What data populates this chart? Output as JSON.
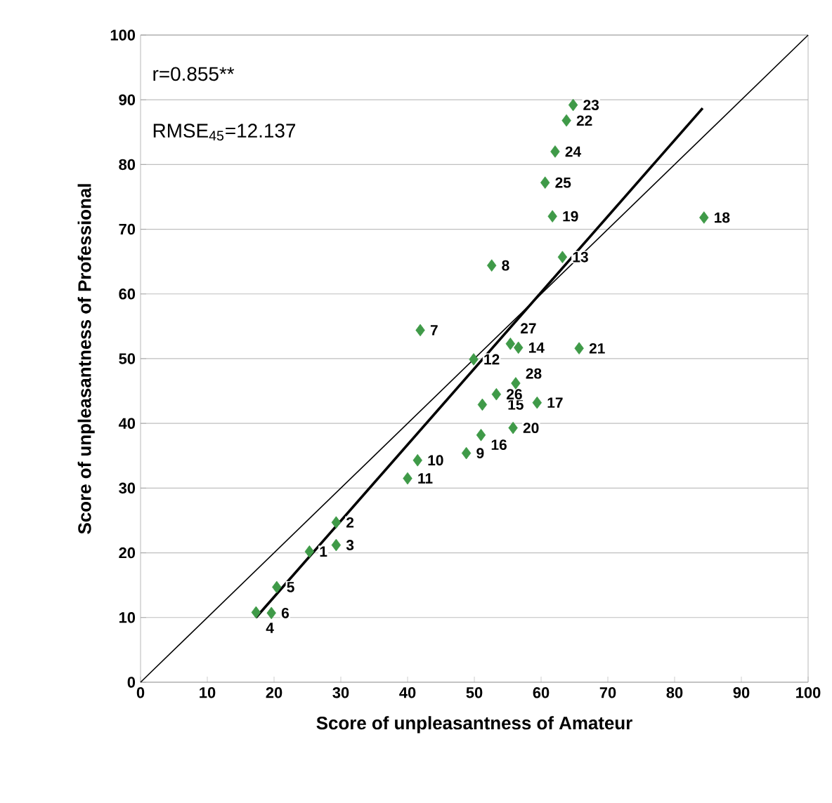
{
  "chart_data": {
    "type": "scatter",
    "xlabel": "Score of unpleasantness of Amateur",
    "ylabel": "Score of unpleasantness of Professional",
    "xlim": [
      0,
      100
    ],
    "ylim": [
      0,
      100
    ],
    "xticks": [
      0,
      10,
      20,
      30,
      40,
      50,
      60,
      70,
      80,
      90,
      100
    ],
    "yticks": [
      0,
      10,
      20,
      30,
      40,
      50,
      60,
      70,
      80,
      90,
      100
    ],
    "grid": "y",
    "marker": "diamond",
    "series": [
      {
        "color": "#3f9a48",
        "x": [
          25.3,
          29.3,
          29.3,
          17.3,
          20.4,
          19.6,
          41.9,
          52.6,
          48.8,
          41.5,
          40.0,
          49.9,
          63.2,
          56.6,
          51.2,
          51.0,
          59.4,
          84.4,
          61.7,
          55.8,
          65.7,
          63.8,
          64.8,
          62.1,
          60.6,
          53.3,
          55.4,
          56.2
        ],
        "values": [
          20.2,
          24.7,
          21.2,
          10.8,
          14.7,
          10.7,
          54.4,
          64.4,
          35.4,
          34.3,
          31.5,
          49.9,
          65.7,
          51.7,
          42.9,
          38.2,
          43.2,
          71.8,
          72.0,
          39.3,
          51.6,
          86.8,
          89.2,
          82.0,
          77.2,
          44.5,
          52.3,
          46.2
        ]
      },
      {
        "type": "line",
        "marker": "none",
        "color": "#000000",
        "x": [
          0,
          100
        ],
        "values": [
          0,
          100
        ]
      },
      {
        "type": "line",
        "marker": "none",
        "color": "#000000",
        "x": [
          17.3,
          84.2
        ],
        "values": [
          10,
          88.7
        ]
      }
    ],
    "annotations": [
      "r=0.855**",
      "RMSE$_{45}$=12.137",
      {
        "text": "1",
        "x": 25.3,
        "y": 20.2
      },
      {
        "text": "2",
        "x": 29.3,
        "y": 24.7
      },
      {
        "text": "3",
        "x": 29.3,
        "y": 21.2
      },
      {
        "text": "4",
        "x": 17.3,
        "y": 10.8
      },
      {
        "text": "5",
        "x": 20.4,
        "y": 14.7
      },
      {
        "text": "6",
        "x": 19.6,
        "y": 10.7
      },
      {
        "text": "7",
        "x": 41.9,
        "y": 54.4
      },
      {
        "text": "8",
        "x": 52.6,
        "y": 64.4
      },
      {
        "text": "9",
        "x": 48.8,
        "y": 35.4
      },
      {
        "text": "10",
        "x": 41.5,
        "y": 34.3
      },
      {
        "text": "11",
        "x": 40.0,
        "y": 31.5
      },
      {
        "text": "12",
        "x": 49.9,
        "y": 49.9
      },
      {
        "text": "13",
        "x": 63.2,
        "y": 65.7
      },
      {
        "text": "14",
        "x": 56.6,
        "y": 51.7
      },
      {
        "text": "15",
        "x": 51.2,
        "y": 42.9
      },
      {
        "text": "16",
        "x": 51.0,
        "y": 38.2
      },
      {
        "text": "17",
        "x": 59.4,
        "y": 43.2
      },
      {
        "text": "18",
        "x": 84.4,
        "y": 71.8
      },
      {
        "text": "19",
        "x": 61.7,
        "y": 72.0
      },
      {
        "text": "20",
        "x": 55.8,
        "y": 39.3
      },
      {
        "text": "21",
        "x": 65.7,
        "y": 51.6
      },
      {
        "text": "22",
        "x": 63.8,
        "y": 86.8
      },
      {
        "text": "23",
        "x": 64.8,
        "y": 89.2
      },
      {
        "text": "24",
        "x": 62.1,
        "y": 82.0
      },
      {
        "text": "25",
        "x": 60.6,
        "y": 77.2
      },
      {
        "text": "26",
        "x": 53.3,
        "y": 44.5
      },
      {
        "text": "27",
        "x": 55.4,
        "y": 52.3
      },
      {
        "text": "28",
        "x": 56.2,
        "y": 46.2
      }
    ]
  }
}
